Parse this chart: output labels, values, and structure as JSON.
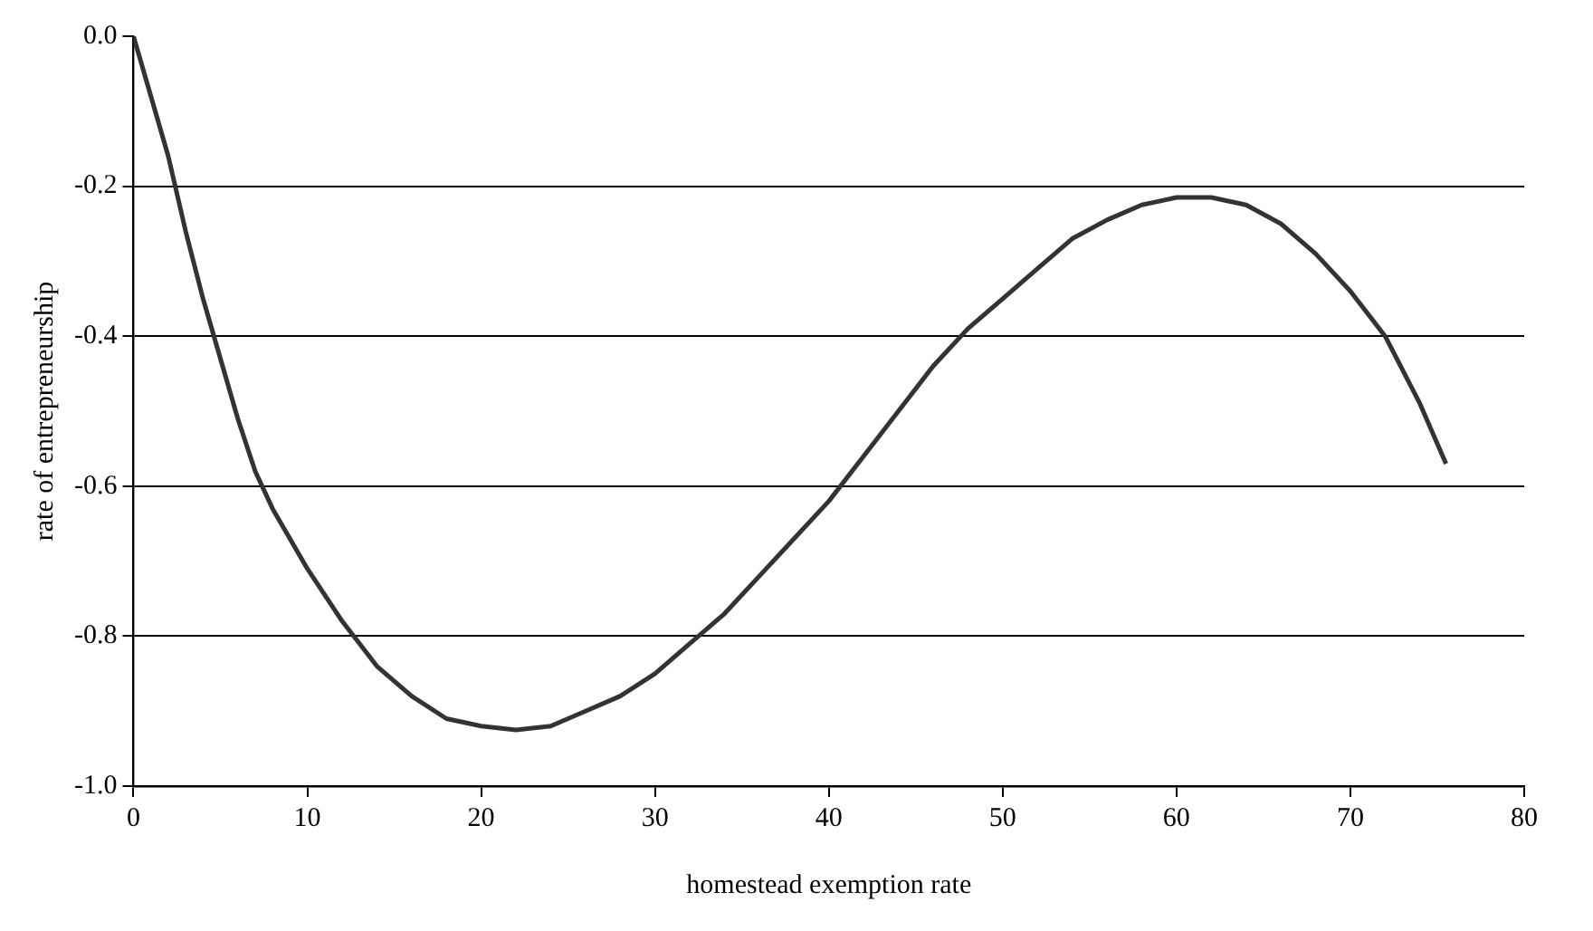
{
  "chart_data": {
    "type": "line",
    "xlabel": "homestead exemption rate",
    "ylabel": "rate of entrepreneurship",
    "xlim": [
      0,
      80
    ],
    "xticks": [
      0,
      10,
      20,
      30,
      40,
      50,
      60,
      70,
      80
    ],
    "ylim": [
      -1.0,
      0.0
    ],
    "yticks": [
      {
        "value": -1.0,
        "label": "-1.0"
      },
      {
        "value": -0.8,
        "label": "-0.8"
      },
      {
        "value": -0.6,
        "label": "-0.6"
      },
      {
        "value": -0.4,
        "label": "-0.4"
      },
      {
        "value": -0.2,
        "label": "-0.2"
      },
      {
        "value": 0.0,
        "label": "0.0"
      }
    ],
    "grid": "y",
    "legend": false,
    "series": [
      {
        "color": "#333333",
        "x": [
          0,
          1,
          2,
          3,
          4,
          5,
          6,
          7,
          8,
          10,
          12,
          14,
          16,
          18,
          20,
          22,
          24,
          26,
          28,
          30,
          32,
          34,
          36,
          38,
          40,
          42,
          44,
          46,
          48,
          50,
          52,
          54,
          56,
          58,
          60,
          62,
          64,
          66,
          68,
          70,
          72,
          74,
          75.5
        ],
        "values": [
          0,
          -0.08,
          -0.16,
          -0.26,
          -0.35,
          -0.43,
          -0.51,
          -0.58,
          -0.63,
          -0.71,
          -0.78,
          -0.84,
          -0.88,
          -0.91,
          -0.92,
          -0.925,
          -0.92,
          -0.9,
          -0.88,
          -0.85,
          -0.81,
          -0.77,
          -0.72,
          -0.67,
          -0.62,
          -0.56,
          -0.5,
          -0.44,
          -0.39,
          -0.35,
          -0.31,
          -0.27,
          -0.245,
          -0.225,
          -0.215,
          -0.215,
          -0.225,
          -0.25,
          -0.29,
          -0.34,
          -0.4,
          -0.49,
          -0.57
        ]
      }
    ]
  }
}
